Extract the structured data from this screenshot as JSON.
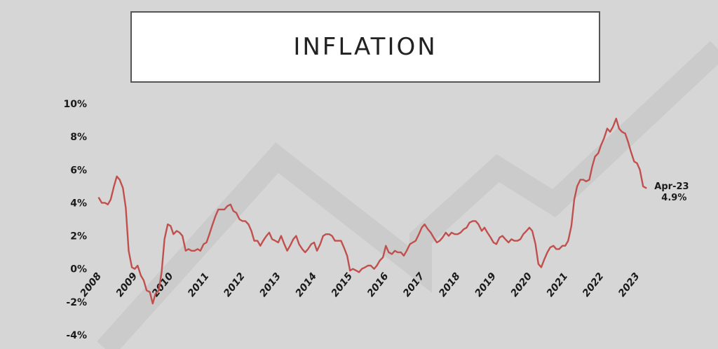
{
  "title": "INFLATION",
  "colors": {
    "line": "#c0504d",
    "background": "#d6d6d6",
    "chevron": "#cbcbcb"
  },
  "chart_data": {
    "type": "line",
    "xlabel": "",
    "ylabel": "",
    "x_range": [
      2008.0,
      2023.42
    ],
    "ylim": [
      -4,
      10
    ],
    "y_ticks": [
      10,
      8,
      6,
      4,
      2,
      0,
      -2,
      -4
    ],
    "y_tick_labels": [
      "10%",
      "8%",
      "6%",
      "4%",
      "2%",
      "0%",
      "-2%",
      "-4%"
    ],
    "x_tick_labels": [
      "2008",
      "2009",
      "2010",
      "2011",
      "2012",
      "2013",
      "2014",
      "2015",
      "2016",
      "2017",
      "2018",
      "2019",
      "2020",
      "2021",
      "2022",
      "2023"
    ],
    "grid": false,
    "legend": "none",
    "series": [
      {
        "values": [
          [
            2008.0,
            4.3
          ],
          [
            2008.08,
            4.0
          ],
          [
            2008.17,
            4.0
          ],
          [
            2008.25,
            3.9
          ],
          [
            2008.33,
            4.2
          ],
          [
            2008.42,
            5.0
          ],
          [
            2008.5,
            5.6
          ],
          [
            2008.58,
            5.4
          ],
          [
            2008.67,
            4.9
          ],
          [
            2008.75,
            3.7
          ],
          [
            2008.83,
            1.1
          ],
          [
            2008.92,
            0.1
          ],
          [
            2009.0,
            0.0
          ],
          [
            2009.08,
            0.2
          ],
          [
            2009.17,
            -0.4
          ],
          [
            2009.25,
            -0.7
          ],
          [
            2009.33,
            -1.3
          ],
          [
            2009.42,
            -1.4
          ],
          [
            2009.5,
            -2.1
          ],
          [
            2009.58,
            -1.5
          ],
          [
            2009.67,
            -1.3
          ],
          [
            2009.75,
            -0.2
          ],
          [
            2009.83,
            1.8
          ],
          [
            2009.92,
            2.7
          ],
          [
            2010.0,
            2.6
          ],
          [
            2010.08,
            2.1
          ],
          [
            2010.17,
            2.3
          ],
          [
            2010.25,
            2.2
          ],
          [
            2010.33,
            2.0
          ],
          [
            2010.42,
            1.1
          ],
          [
            2010.5,
            1.2
          ],
          [
            2010.58,
            1.1
          ],
          [
            2010.67,
            1.1
          ],
          [
            2010.75,
            1.2
          ],
          [
            2010.83,
            1.1
          ],
          [
            2010.92,
            1.5
          ],
          [
            2011.0,
            1.6
          ],
          [
            2011.08,
            2.1
          ],
          [
            2011.17,
            2.7
          ],
          [
            2011.25,
            3.2
          ],
          [
            2011.33,
            3.6
          ],
          [
            2011.42,
            3.6
          ],
          [
            2011.5,
            3.6
          ],
          [
            2011.58,
            3.8
          ],
          [
            2011.67,
            3.9
          ],
          [
            2011.75,
            3.5
          ],
          [
            2011.83,
            3.4
          ],
          [
            2011.92,
            3.0
          ],
          [
            2012.0,
            2.9
          ],
          [
            2012.08,
            2.9
          ],
          [
            2012.17,
            2.7
          ],
          [
            2012.25,
            2.3
          ],
          [
            2012.33,
            1.7
          ],
          [
            2012.42,
            1.7
          ],
          [
            2012.5,
            1.4
          ],
          [
            2012.58,
            1.7
          ],
          [
            2012.67,
            2.0
          ],
          [
            2012.75,
            2.2
          ],
          [
            2012.83,
            1.8
          ],
          [
            2012.92,
            1.7
          ],
          [
            2013.0,
            1.6
          ],
          [
            2013.08,
            2.0
          ],
          [
            2013.17,
            1.5
          ],
          [
            2013.25,
            1.1
          ],
          [
            2013.33,
            1.4
          ],
          [
            2013.42,
            1.8
          ],
          [
            2013.5,
            2.0
          ],
          [
            2013.58,
            1.5
          ],
          [
            2013.67,
            1.2
          ],
          [
            2013.75,
            1.0
          ],
          [
            2013.83,
            1.2
          ],
          [
            2013.92,
            1.5
          ],
          [
            2014.0,
            1.6
          ],
          [
            2014.08,
            1.1
          ],
          [
            2014.17,
            1.5
          ],
          [
            2014.25,
            2.0
          ],
          [
            2014.33,
            2.1
          ],
          [
            2014.42,
            2.1
          ],
          [
            2014.5,
            2.0
          ],
          [
            2014.58,
            1.7
          ],
          [
            2014.67,
            1.7
          ],
          [
            2014.75,
            1.7
          ],
          [
            2014.83,
            1.3
          ],
          [
            2014.92,
            0.8
          ],
          [
            2015.0,
            -0.1
          ],
          [
            2015.08,
            0.0
          ],
          [
            2015.17,
            -0.1
          ],
          [
            2015.25,
            -0.2
          ],
          [
            2015.33,
            0.0
          ],
          [
            2015.42,
            0.1
          ],
          [
            2015.5,
            0.2
          ],
          [
            2015.58,
            0.2
          ],
          [
            2015.67,
            0.0
          ],
          [
            2015.75,
            0.2
          ],
          [
            2015.83,
            0.5
          ],
          [
            2015.92,
            0.7
          ],
          [
            2016.0,
            1.4
          ],
          [
            2016.08,
            1.0
          ],
          [
            2016.17,
            0.9
          ],
          [
            2016.25,
            1.1
          ],
          [
            2016.33,
            1.0
          ],
          [
            2016.42,
            1.0
          ],
          [
            2016.5,
            0.8
          ],
          [
            2016.58,
            1.1
          ],
          [
            2016.67,
            1.5
          ],
          [
            2016.75,
            1.6
          ],
          [
            2016.83,
            1.7
          ],
          [
            2016.92,
            2.1
          ],
          [
            2017.0,
            2.5
          ],
          [
            2017.08,
            2.7
          ],
          [
            2017.17,
            2.4
          ],
          [
            2017.25,
            2.2
          ],
          [
            2017.33,
            1.9
          ],
          [
            2017.42,
            1.6
          ],
          [
            2017.5,
            1.7
          ],
          [
            2017.58,
            1.9
          ],
          [
            2017.67,
            2.2
          ],
          [
            2017.75,
            2.0
          ],
          [
            2017.83,
            2.2
          ],
          [
            2017.92,
            2.1
          ],
          [
            2018.0,
            2.1
          ],
          [
            2018.08,
            2.2
          ],
          [
            2018.17,
            2.4
          ],
          [
            2018.25,
            2.5
          ],
          [
            2018.33,
            2.8
          ],
          [
            2018.42,
            2.9
          ],
          [
            2018.5,
            2.9
          ],
          [
            2018.58,
            2.7
          ],
          [
            2018.67,
            2.3
          ],
          [
            2018.75,
            2.5
          ],
          [
            2018.83,
            2.2
          ],
          [
            2018.92,
            1.9
          ],
          [
            2019.0,
            1.6
          ],
          [
            2019.08,
            1.5
          ],
          [
            2019.17,
            1.9
          ],
          [
            2019.25,
            2.0
          ],
          [
            2019.33,
            1.8
          ],
          [
            2019.42,
            1.6
          ],
          [
            2019.5,
            1.8
          ],
          [
            2019.58,
            1.7
          ],
          [
            2019.67,
            1.7
          ],
          [
            2019.75,
            1.8
          ],
          [
            2019.83,
            2.1
          ],
          [
            2019.92,
            2.3
          ],
          [
            2020.0,
            2.5
          ],
          [
            2020.08,
            2.3
          ],
          [
            2020.17,
            1.5
          ],
          [
            2020.25,
            0.3
          ],
          [
            2020.33,
            0.1
          ],
          [
            2020.42,
            0.6
          ],
          [
            2020.5,
            1.0
          ],
          [
            2020.58,
            1.3
          ],
          [
            2020.67,
            1.4
          ],
          [
            2020.75,
            1.2
          ],
          [
            2020.83,
            1.2
          ],
          [
            2020.92,
            1.4
          ],
          [
            2021.0,
            1.4
          ],
          [
            2021.08,
            1.7
          ],
          [
            2021.17,
            2.6
          ],
          [
            2021.25,
            4.2
          ],
          [
            2021.33,
            5.0
          ],
          [
            2021.42,
            5.4
          ],
          [
            2021.5,
            5.4
          ],
          [
            2021.58,
            5.3
          ],
          [
            2021.67,
            5.4
          ],
          [
            2021.75,
            6.2
          ],
          [
            2021.83,
            6.8
          ],
          [
            2021.92,
            7.0
          ],
          [
            2022.0,
            7.5
          ],
          [
            2022.08,
            7.9
          ],
          [
            2022.17,
            8.5
          ],
          [
            2022.25,
            8.3
          ],
          [
            2022.33,
            8.6
          ],
          [
            2022.42,
            9.1
          ],
          [
            2022.5,
            8.5
          ],
          [
            2022.58,
            8.3
          ],
          [
            2022.67,
            8.2
          ],
          [
            2022.75,
            7.7
          ],
          [
            2022.83,
            7.1
          ],
          [
            2022.92,
            6.5
          ],
          [
            2023.0,
            6.4
          ],
          [
            2023.08,
            6.0
          ],
          [
            2023.17,
            5.0
          ],
          [
            2023.25,
            4.9
          ]
        ]
      }
    ],
    "annotation": {
      "label": "Apr-23",
      "value_label": "4.9%",
      "x": 2023.25,
      "y": 4.9
    }
  }
}
